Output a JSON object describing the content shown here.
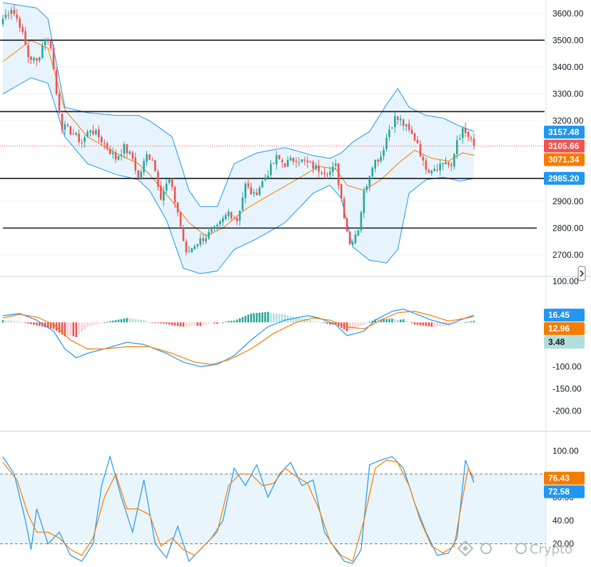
{
  "watermark": {
    "text": "Crypto",
    "icon": "watermark-logo-icon"
  },
  "scroll_toggle_icon": "chevron-right-icon",
  "colors": {
    "up": "#26a69a",
    "down": "#ef5350",
    "bb_line": "#2196f3",
    "bb_fill": "#e3f2fd",
    "orange": "#f57c00",
    "blue": "#2196f3",
    "hist_up_strong": "#26a69a",
    "hist_up_weak": "#b2dfdb",
    "hist_down_strong": "#ef5350",
    "hist_down_weak": "#ffcdd2"
  },
  "chart_data": [
    {
      "type": "candlestick",
      "name": "price",
      "ylim": [
        2620,
        3650
      ],
      "yticks": [
        "3600.00",
        "3500.00",
        "3400.00",
        "3300.00",
        "3200.00",
        "2900.00",
        "2800.00",
        "2700.00"
      ],
      "horizontal_levels": [
        3500,
        3234,
        2985,
        2800
      ],
      "badges": [
        {
          "label": "3157.48",
          "value": 3157.48,
          "color": "#2196f3",
          "text": "light"
        },
        {
          "label": "3105.66",
          "value": 3105.66,
          "color": "#ef5350",
          "text": "light"
        },
        {
          "label": "3071.34",
          "value": 3071.34,
          "color": "#f57c00",
          "text": "light"
        },
        {
          "label": "2985.20",
          "value": 2985.2,
          "color": "#2196f3",
          "text": "light"
        }
      ],
      "last_price": 3105.66,
      "close_anchors": [
        [
          0,
          3580
        ],
        [
          3,
          3620
        ],
        [
          6,
          3560
        ],
        [
          9,
          3440
        ],
        [
          12,
          3420
        ],
        [
          15,
          3510
        ],
        [
          17,
          3480
        ],
        [
          19,
          3300
        ],
        [
          21,
          3180
        ],
        [
          24,
          3160
        ],
        [
          28,
          3120
        ],
        [
          31,
          3170
        ],
        [
          34,
          3140
        ],
        [
          37,
          3100
        ],
        [
          40,
          3060
        ],
        [
          43,
          3100
        ],
        [
          46,
          3060
        ],
        [
          48,
          2985
        ],
        [
          51,
          3070
        ],
        [
          53,
          3060
        ],
        [
          56,
          2920
        ],
        [
          59,
          2980
        ],
        [
          62,
          2860
        ],
        [
          65,
          2700
        ],
        [
          68,
          2740
        ],
        [
          72,
          2770
        ],
        [
          76,
          2800
        ],
        [
          80,
          2860
        ],
        [
          83,
          2830
        ],
        [
          86,
          2960
        ],
        [
          89,
          2920
        ],
        [
          93,
          2990
        ],
        [
          97,
          3060
        ],
        [
          100,
          3040
        ],
        [
          104,
          3060
        ],
        [
          108,
          3040
        ],
        [
          112,
          3020
        ],
        [
          116,
          3010
        ],
        [
          118,
          3030
        ],
        [
          121,
          2850
        ],
        [
          123,
          2740
        ],
        [
          126,
          2800
        ],
        [
          128,
          2930
        ],
        [
          131,
          3040
        ],
        [
          134,
          3070
        ],
        [
          137,
          3170
        ],
        [
          139,
          3210
        ],
        [
          141,
          3200
        ],
        [
          144,
          3160
        ],
        [
          147,
          3120
        ],
        [
          149,
          3040
        ],
        [
          151,
          3020
        ],
        [
          154,
          3030
        ],
        [
          157,
          3050
        ],
        [
          159,
          3020
        ],
        [
          161,
          3130
        ],
        [
          163,
          3160
        ],
        [
          165,
          3140
        ],
        [
          167,
          3105.66
        ]
      ],
      "bollinger": {
        "upper_anchors": [
          [
            0,
            3640
          ],
          [
            12,
            3620
          ],
          [
            16,
            3580
          ],
          [
            22,
            3250
          ],
          [
            30,
            3230
          ],
          [
            40,
            3220
          ],
          [
            48,
            3220
          ],
          [
            52,
            3200
          ],
          [
            60,
            3140
          ],
          [
            66,
            2940
          ],
          [
            70,
            2880
          ],
          [
            76,
            2880
          ],
          [
            82,
            3040
          ],
          [
            90,
            3080
          ],
          [
            100,
            3100
          ],
          [
            110,
            3070
          ],
          [
            116,
            3060
          ],
          [
            120,
            3080
          ],
          [
            124,
            3120
          ],
          [
            130,
            3160
          ],
          [
            136,
            3260
          ],
          [
            140,
            3320
          ],
          [
            144,
            3250
          ],
          [
            150,
            3220
          ],
          [
            156,
            3210
          ],
          [
            162,
            3180
          ],
          [
            167,
            3160
          ]
        ],
        "lower_anchors": [
          [
            0,
            3300
          ],
          [
            10,
            3360
          ],
          [
            16,
            3340
          ],
          [
            22,
            3140
          ],
          [
            30,
            3040
          ],
          [
            40,
            3000
          ],
          [
            48,
            2980
          ],
          [
            52,
            2940
          ],
          [
            58,
            2830
          ],
          [
            64,
            2650
          ],
          [
            70,
            2630
          ],
          [
            76,
            2640
          ],
          [
            82,
            2720
          ],
          [
            90,
            2760
          ],
          [
            100,
            2820
          ],
          [
            110,
            2930
          ],
          [
            116,
            2960
          ],
          [
            120,
            2910
          ],
          [
            124,
            2730
          ],
          [
            130,
            2680
          ],
          [
            136,
            2670
          ],
          [
            140,
            2720
          ],
          [
            144,
            2930
          ],
          [
            150,
            2980
          ],
          [
            156,
            2990
          ],
          [
            162,
            2975
          ],
          [
            167,
            2985
          ]
        ],
        "basis_anchors": [
          [
            0,
            3420
          ],
          [
            10,
            3500
          ],
          [
            16,
            3470
          ],
          [
            22,
            3240
          ],
          [
            30,
            3140
          ],
          [
            40,
            3080
          ],
          [
            48,
            3040
          ],
          [
            52,
            3000
          ],
          [
            60,
            2900
          ],
          [
            66,
            2820
          ],
          [
            72,
            2770
          ],
          [
            78,
            2800
          ],
          [
            86,
            2870
          ],
          [
            94,
            2920
          ],
          [
            104,
            2980
          ],
          [
            112,
            3030
          ],
          [
            118,
            3020
          ],
          [
            122,
            2960
          ],
          [
            128,
            2940
          ],
          [
            134,
            2980
          ],
          [
            140,
            3040
          ],
          [
            146,
            3090
          ],
          [
            152,
            3060
          ],
          [
            158,
            3050
          ],
          [
            163,
            3080
          ],
          [
            167,
            3071.34
          ]
        ]
      }
    },
    {
      "type": "macd",
      "name": "macd",
      "ylim": [
        -230,
        70
      ],
      "yticks": [
        "100.00",
        "-50.00",
        "-100.00",
        "-150.00",
        "-200.00"
      ],
      "badges": [
        {
          "label": "16.45",
          "value": 16.45,
          "color": "#2196f3",
          "text": "light"
        },
        {
          "label": "12.96",
          "value": 12.96,
          "color": "#f57c00",
          "text": "light"
        },
        {
          "label": "3.48",
          "value": 3.48,
          "color": "#b2dfdb",
          "text": "dark"
        }
      ],
      "macd_anchors": [
        [
          0,
          15
        ],
        [
          6,
          20
        ],
        [
          12,
          5
        ],
        [
          18,
          -20
        ],
        [
          22,
          -60
        ],
        [
          26,
          -80
        ],
        [
          30,
          -70
        ],
        [
          36,
          -60
        ],
        [
          44,
          -45
        ],
        [
          50,
          -50
        ],
        [
          58,
          -70
        ],
        [
          64,
          -90
        ],
        [
          70,
          -100
        ],
        [
          76,
          -95
        ],
        [
          82,
          -75
        ],
        [
          88,
          -40
        ],
        [
          94,
          -10
        ],
        [
          100,
          5
        ],
        [
          108,
          15
        ],
        [
          112,
          10
        ],
        [
          118,
          -5
        ],
        [
          122,
          -30
        ],
        [
          128,
          -20
        ],
        [
          132,
          5
        ],
        [
          138,
          25
        ],
        [
          142,
          30
        ],
        [
          146,
          20
        ],
        [
          152,
          5
        ],
        [
          158,
          -5
        ],
        [
          162,
          5
        ],
        [
          167,
          16.45
        ]
      ],
      "signal_anchors": [
        [
          0,
          10
        ],
        [
          6,
          18
        ],
        [
          12,
          12
        ],
        [
          18,
          -5
        ],
        [
          24,
          -40
        ],
        [
          30,
          -60
        ],
        [
          36,
          -60
        ],
        [
          44,
          -55
        ],
        [
          52,
          -55
        ],
        [
          60,
          -70
        ],
        [
          68,
          -90
        ],
        [
          74,
          -95
        ],
        [
          80,
          -85
        ],
        [
          88,
          -60
        ],
        [
          96,
          -25
        ],
        [
          104,
          0
        ],
        [
          110,
          10
        ],
        [
          116,
          5
        ],
        [
          122,
          -10
        ],
        [
          128,
          -15
        ],
        [
          134,
          5
        ],
        [
          140,
          22
        ],
        [
          146,
          25
        ],
        [
          152,
          15
        ],
        [
          158,
          3
        ],
        [
          163,
          8
        ],
        [
          167,
          12.96
        ]
      ]
    },
    {
      "type": "stochastic",
      "name": "stoch_rsi",
      "ylim": [
        0,
        110
      ],
      "yticks": [
        "100.00",
        "60.00",
        "40.00",
        "20.00"
      ],
      "band": [
        20,
        80
      ],
      "badges": [
        {
          "label": "76.43",
          "value": 76.43,
          "color": "#f57c00",
          "text": "light"
        },
        {
          "label": "72.58",
          "value": 72.58,
          "color": "#2196f3",
          "text": "light"
        }
      ],
      "k_anchors": [
        [
          0,
          95
        ],
        [
          4,
          80
        ],
        [
          8,
          40
        ],
        [
          10,
          15
        ],
        [
          12,
          50
        ],
        [
          16,
          20
        ],
        [
          20,
          30
        ],
        [
          24,
          10
        ],
        [
          28,
          5
        ],
        [
          32,
          20
        ],
        [
          35,
          70
        ],
        [
          38,
          95
        ],
        [
          42,
          60
        ],
        [
          46,
          30
        ],
        [
          50,
          75
        ],
        [
          54,
          20
        ],
        [
          58,
          8
        ],
        [
          62,
          35
        ],
        [
          66,
          5
        ],
        [
          70,
          15
        ],
        [
          74,
          25
        ],
        [
          78,
          40
        ],
        [
          82,
          85
        ],
        [
          86,
          70
        ],
        [
          90,
          88
        ],
        [
          94,
          60
        ],
        [
          98,
          80
        ],
        [
          102,
          90
        ],
        [
          106,
          70
        ],
        [
          110,
          75
        ],
        [
          114,
          30
        ],
        [
          118,
          15
        ],
        [
          121,
          5
        ],
        [
          124,
          3
        ],
        [
          127,
          15
        ],
        [
          130,
          88
        ],
        [
          134,
          92
        ],
        [
          138,
          95
        ],
        [
          142,
          85
        ],
        [
          146,
          55
        ],
        [
          150,
          30
        ],
        [
          154,
          10
        ],
        [
          158,
          12
        ],
        [
          161,
          25
        ],
        [
          164,
          92
        ],
        [
          167,
          72.58
        ]
      ],
      "d_anchors": [
        [
          0,
          90
        ],
        [
          5,
          75
        ],
        [
          9,
          45
        ],
        [
          12,
          30
        ],
        [
          16,
          30
        ],
        [
          20,
          25
        ],
        [
          24,
          15
        ],
        [
          28,
          10
        ],
        [
          32,
          25
        ],
        [
          36,
          60
        ],
        [
          40,
          80
        ],
        [
          44,
          50
        ],
        [
          48,
          50
        ],
        [
          52,
          45
        ],
        [
          56,
          18
        ],
        [
          60,
          25
        ],
        [
          64,
          15
        ],
        [
          68,
          10
        ],
        [
          72,
          20
        ],
        [
          76,
          30
        ],
        [
          80,
          70
        ],
        [
          84,
          80
        ],
        [
          88,
          80
        ],
        [
          92,
          70
        ],
        [
          96,
          72
        ],
        [
          100,
          85
        ],
        [
          104,
          78
        ],
        [
          108,
          72
        ],
        [
          112,
          50
        ],
        [
          116,
          22
        ],
        [
          120,
          10
        ],
        [
          124,
          5
        ],
        [
          128,
          40
        ],
        [
          132,
          85
        ],
        [
          136,
          92
        ],
        [
          140,
          90
        ],
        [
          144,
          70
        ],
        [
          148,
          40
        ],
        [
          152,
          18
        ],
        [
          156,
          12
        ],
        [
          160,
          18
        ],
        [
          163,
          60
        ],
        [
          165,
          85
        ],
        [
          167,
          76.43
        ]
      ]
    }
  ]
}
